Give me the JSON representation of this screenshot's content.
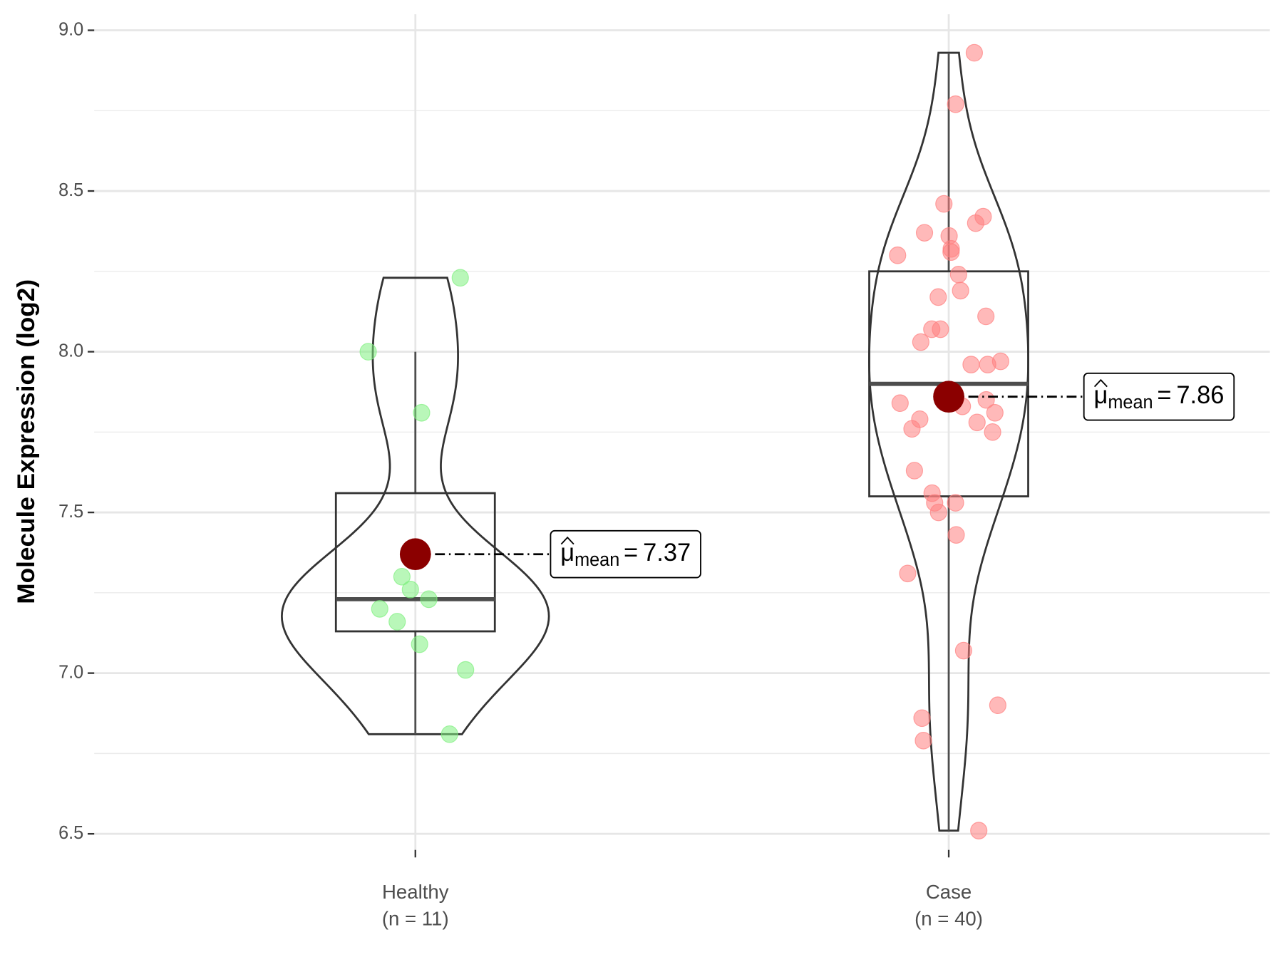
{
  "chart_data": {
    "type": "violin",
    "y_label": "Molecule Expression (log2)",
    "ylim": [
      6.45,
      9.05
    ],
    "yticks": [
      6.5,
      {
        "value": 7.0,
        "label": "7.0"
      },
      7.5,
      {
        "value": 8.0,
        "label": "8.0"
      },
      8.5,
      {
        "value": 9.0,
        "label": "9.0"
      }
    ],
    "minor_yticks": [
      6.75,
      7.25,
      7.75,
      8.25,
      8.75
    ],
    "grid": true,
    "mean_label": {
      "symbol": "μ",
      "subscript": "mean",
      "relation": "="
    },
    "mean_color": "#8b0000",
    "groups": [
      {
        "category": "Healthy",
        "count_label": "(n = 11)",
        "color": "#7ff07f",
        "values": [
          8.23,
          8.0,
          7.81,
          7.3,
          7.26,
          7.23,
          7.2,
          7.16,
          7.09,
          7.01,
          6.81
        ],
        "box": {
          "whisker_low": 6.81,
          "q1": 7.13,
          "median": 7.23,
          "q3": 7.56,
          "whisker_high": 8.0
        },
        "mean": 7.37
      },
      {
        "category": "Case",
        "count_label": "(n = 40)",
        "color": "#ff7f7f",
        "values": [
          8.93,
          8.77,
          8.46,
          8.37,
          8.42,
          8.4,
          8.36,
          8.32,
          8.31,
          8.3,
          8.24,
          8.19,
          8.17,
          8.11,
          8.07,
          8.07,
          8.03,
          7.97,
          7.96,
          7.96,
          7.85,
          7.84,
          7.83,
          7.81,
          7.79,
          7.78,
          7.76,
          7.75,
          7.63,
          7.56,
          7.53,
          7.53,
          7.5,
          7.43,
          7.31,
          7.07,
          6.9,
          6.86,
          6.79,
          6.51
        ],
        "box": {
          "whisker_low": 6.51,
          "q1": 7.55,
          "median": 7.9,
          "q3": 8.25,
          "whisker_high": 8.93
        },
        "mean": 7.86
      }
    ]
  }
}
